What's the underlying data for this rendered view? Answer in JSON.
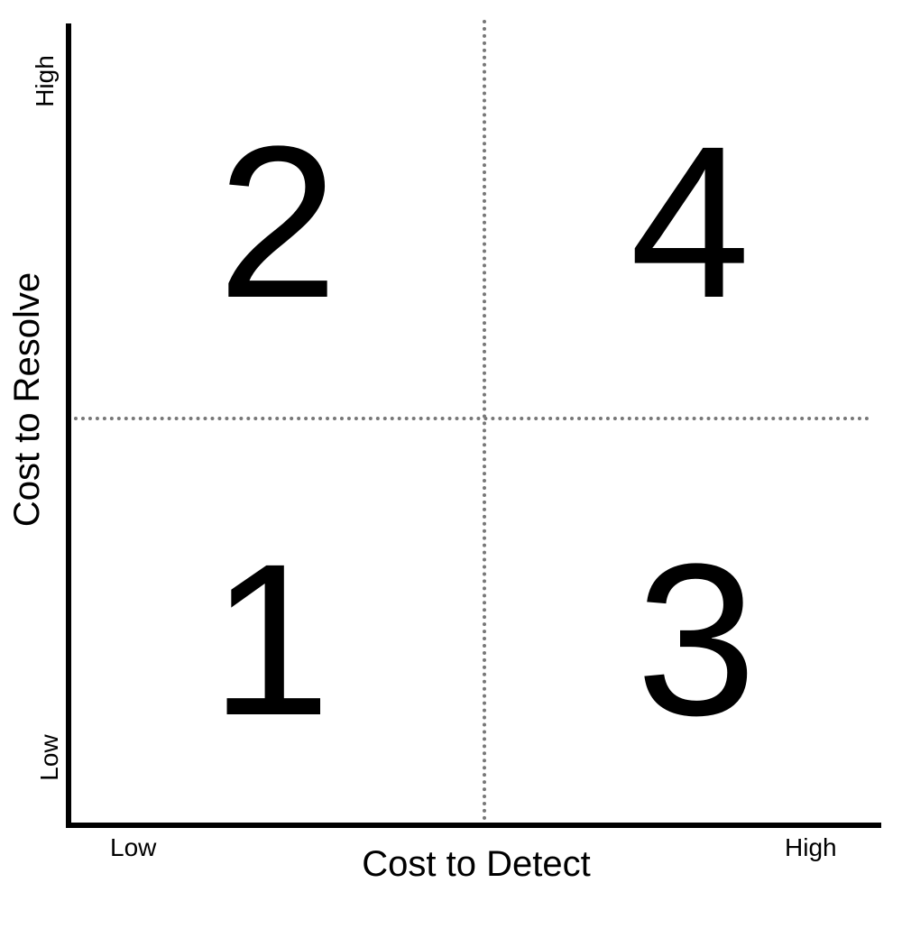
{
  "x_axis": {
    "title": "Cost to Detect",
    "low_label": "Low",
    "high_label": "High"
  },
  "y_axis": {
    "title": "Cost to Resolve",
    "low_label": "Low",
    "high_label": "High"
  },
  "quadrants": {
    "top_left": "2",
    "top_right": "4",
    "bottom_left": "1",
    "bottom_right": "3"
  }
}
